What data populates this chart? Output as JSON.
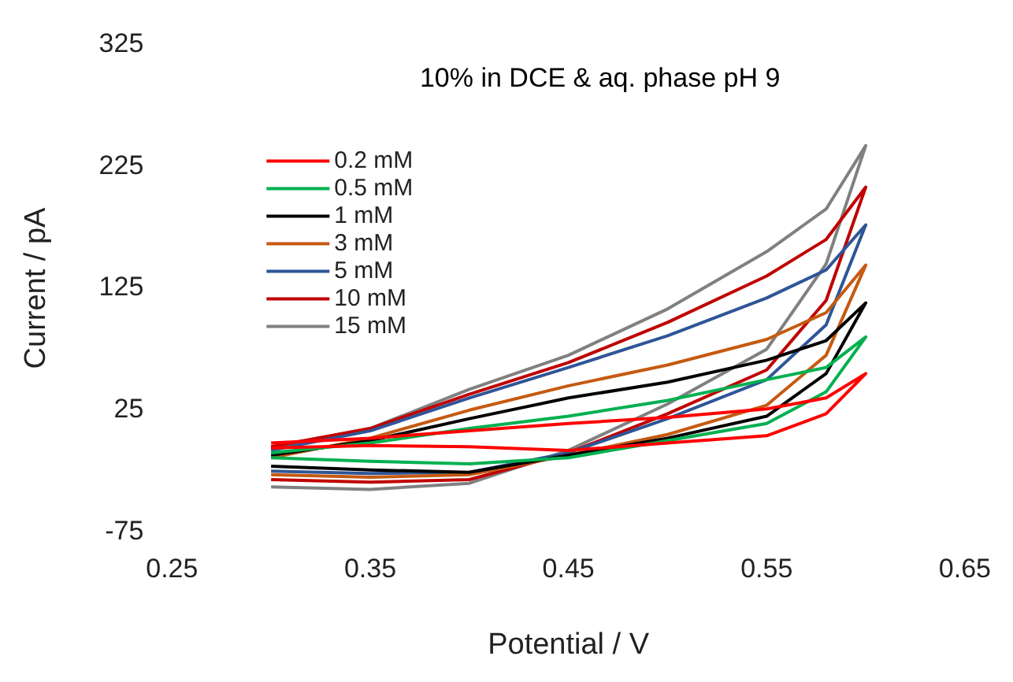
{
  "chart_data": {
    "type": "line",
    "title": "10% in DCE & aq. phase pH 9",
    "xlabel": "Potential / V",
    "ylabel": "Current / pA",
    "xlim": [
      0.25,
      0.65
    ],
    "xticks": [
      0.25,
      0.35,
      0.45,
      0.55,
      0.65
    ],
    "ylim": [
      -75,
      325
    ],
    "yticks": [
      -75,
      25,
      125,
      225,
      325
    ],
    "grid": false,
    "legend": "top left",
    "marker": "none",
    "line_style": "solid",
    "series": [
      {
        "name": "0.2 mM",
        "color": "#ff0000",
        "x": [
          0.3,
          0.35,
          0.4,
          0.45,
          0.5,
          0.55,
          0.58,
          0.6,
          0.58,
          0.55,
          0.5,
          0.45,
          0.4,
          0.35,
          0.3
        ],
        "values": [
          -2,
          2,
          8,
          14,
          19,
          26,
          35,
          55,
          22,
          4,
          -2,
          -8,
          -5,
          -4,
          -6
        ]
      },
      {
        "name": "0.5 mM",
        "color": "#00b050",
        "x": [
          0.3,
          0.35,
          0.4,
          0.45,
          0.5,
          0.55,
          0.58,
          0.6,
          0.58,
          0.55,
          0.5,
          0.45,
          0.4,
          0.35,
          0.3
        ],
        "values": [
          -10,
          -2,
          10,
          20,
          33,
          50,
          60,
          85,
          40,
          14,
          0,
          -14,
          -19,
          -17,
          -14
        ]
      },
      {
        "name": "1 mM",
        "color": "#000000",
        "x": [
          0.3,
          0.35,
          0.4,
          0.45,
          0.5,
          0.55,
          0.58,
          0.6,
          0.58,
          0.55,
          0.5,
          0.45,
          0.4,
          0.35,
          0.3
        ],
        "values": [
          -12,
          0,
          18,
          35,
          48,
          66,
          82,
          113,
          55,
          20,
          2,
          -12,
          -26,
          -24,
          -21
        ]
      },
      {
        "name": "3 mM",
        "color": "#c55a11",
        "x": [
          0.3,
          0.35,
          0.4,
          0.45,
          0.5,
          0.55,
          0.58,
          0.6,
          0.58,
          0.55,
          0.5,
          0.45,
          0.4,
          0.35,
          0.3
        ],
        "values": [
          -14,
          2,
          25,
          45,
          62,
          83,
          105,
          144,
          70,
          29,
          5,
          -12,
          -28,
          -30,
          -28
        ]
      },
      {
        "name": "5 mM",
        "color": "#2f5597",
        "x": [
          0.3,
          0.35,
          0.4,
          0.45,
          0.5,
          0.55,
          0.58,
          0.6,
          0.58,
          0.55,
          0.5,
          0.45,
          0.4,
          0.35,
          0.3
        ],
        "values": [
          -8,
          8,
          35,
          60,
          86,
          117,
          140,
          177,
          95,
          50,
          18,
          -10,
          -26,
          -27,
          -25
        ]
      },
      {
        "name": "10 mM",
        "color": "#c00000",
        "x": [
          0.3,
          0.35,
          0.4,
          0.45,
          0.5,
          0.55,
          0.58,
          0.6,
          0.58,
          0.55,
          0.5,
          0.45,
          0.4,
          0.35,
          0.3
        ],
        "values": [
          -5,
          10,
          38,
          64,
          97,
          135,
          165,
          208,
          115,
          58,
          22,
          -10,
          -32,
          -34,
          -32
        ]
      },
      {
        "name": "15 mM",
        "color": "#808080",
        "x": [
          0.3,
          0.35,
          0.4,
          0.45,
          0.5,
          0.55,
          0.58,
          0.6,
          0.58,
          0.55,
          0.5,
          0.45,
          0.4,
          0.35,
          0.3
        ],
        "values": [
          -6,
          10,
          42,
          70,
          108,
          155,
          190,
          242,
          145,
          75,
          30,
          -8,
          -35,
          -40,
          -38
        ]
      }
    ]
  }
}
